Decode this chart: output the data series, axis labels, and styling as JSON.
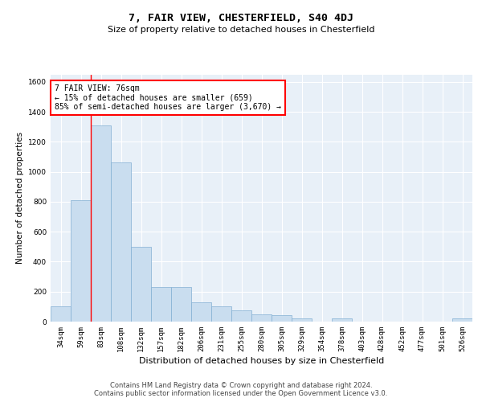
{
  "title": "7, FAIR VIEW, CHESTERFIELD, S40 4DJ",
  "subtitle": "Size of property relative to detached houses in Chesterfield",
  "xlabel": "Distribution of detached houses by size in Chesterfield",
  "ylabel": "Number of detached properties",
  "bar_color": "#c9ddef",
  "bar_edge_color": "#82afd3",
  "background_color": "#e8f0f8",
  "annotation_text": "7 FAIR VIEW: 76sqm\n← 15% of detached houses are smaller (659)\n85% of semi-detached houses are larger (3,670) →",
  "annotation_box_color": "white",
  "annotation_box_edge": "red",
  "vline_color": "red",
  "categories": [
    "34sqm",
    "59sqm",
    "83sqm",
    "108sqm",
    "132sqm",
    "157sqm",
    "182sqm",
    "206sqm",
    "231sqm",
    "255sqm",
    "280sqm",
    "305sqm",
    "329sqm",
    "354sqm",
    "378sqm",
    "403sqm",
    "428sqm",
    "452sqm",
    "477sqm",
    "501sqm",
    "526sqm"
  ],
  "values": [
    100,
    810,
    1310,
    1060,
    500,
    230,
    230,
    130,
    100,
    75,
    50,
    45,
    20,
    0,
    20,
    0,
    0,
    0,
    0,
    0,
    20
  ],
  "ylim": [
    0,
    1650
  ],
  "yticks": [
    0,
    200,
    400,
    600,
    800,
    1000,
    1200,
    1400,
    1600
  ],
  "footer_line1": "Contains HM Land Registry data © Crown copyright and database right 2024.",
  "footer_line2": "Contains public sector information licensed under the Open Government Licence v3.0.",
  "title_fontsize": 9.5,
  "subtitle_fontsize": 8,
  "tick_label_fontsize": 6.5,
  "ylabel_fontsize": 7.5,
  "xlabel_fontsize": 8,
  "annotation_fontsize": 7,
  "footer_fontsize": 6
}
